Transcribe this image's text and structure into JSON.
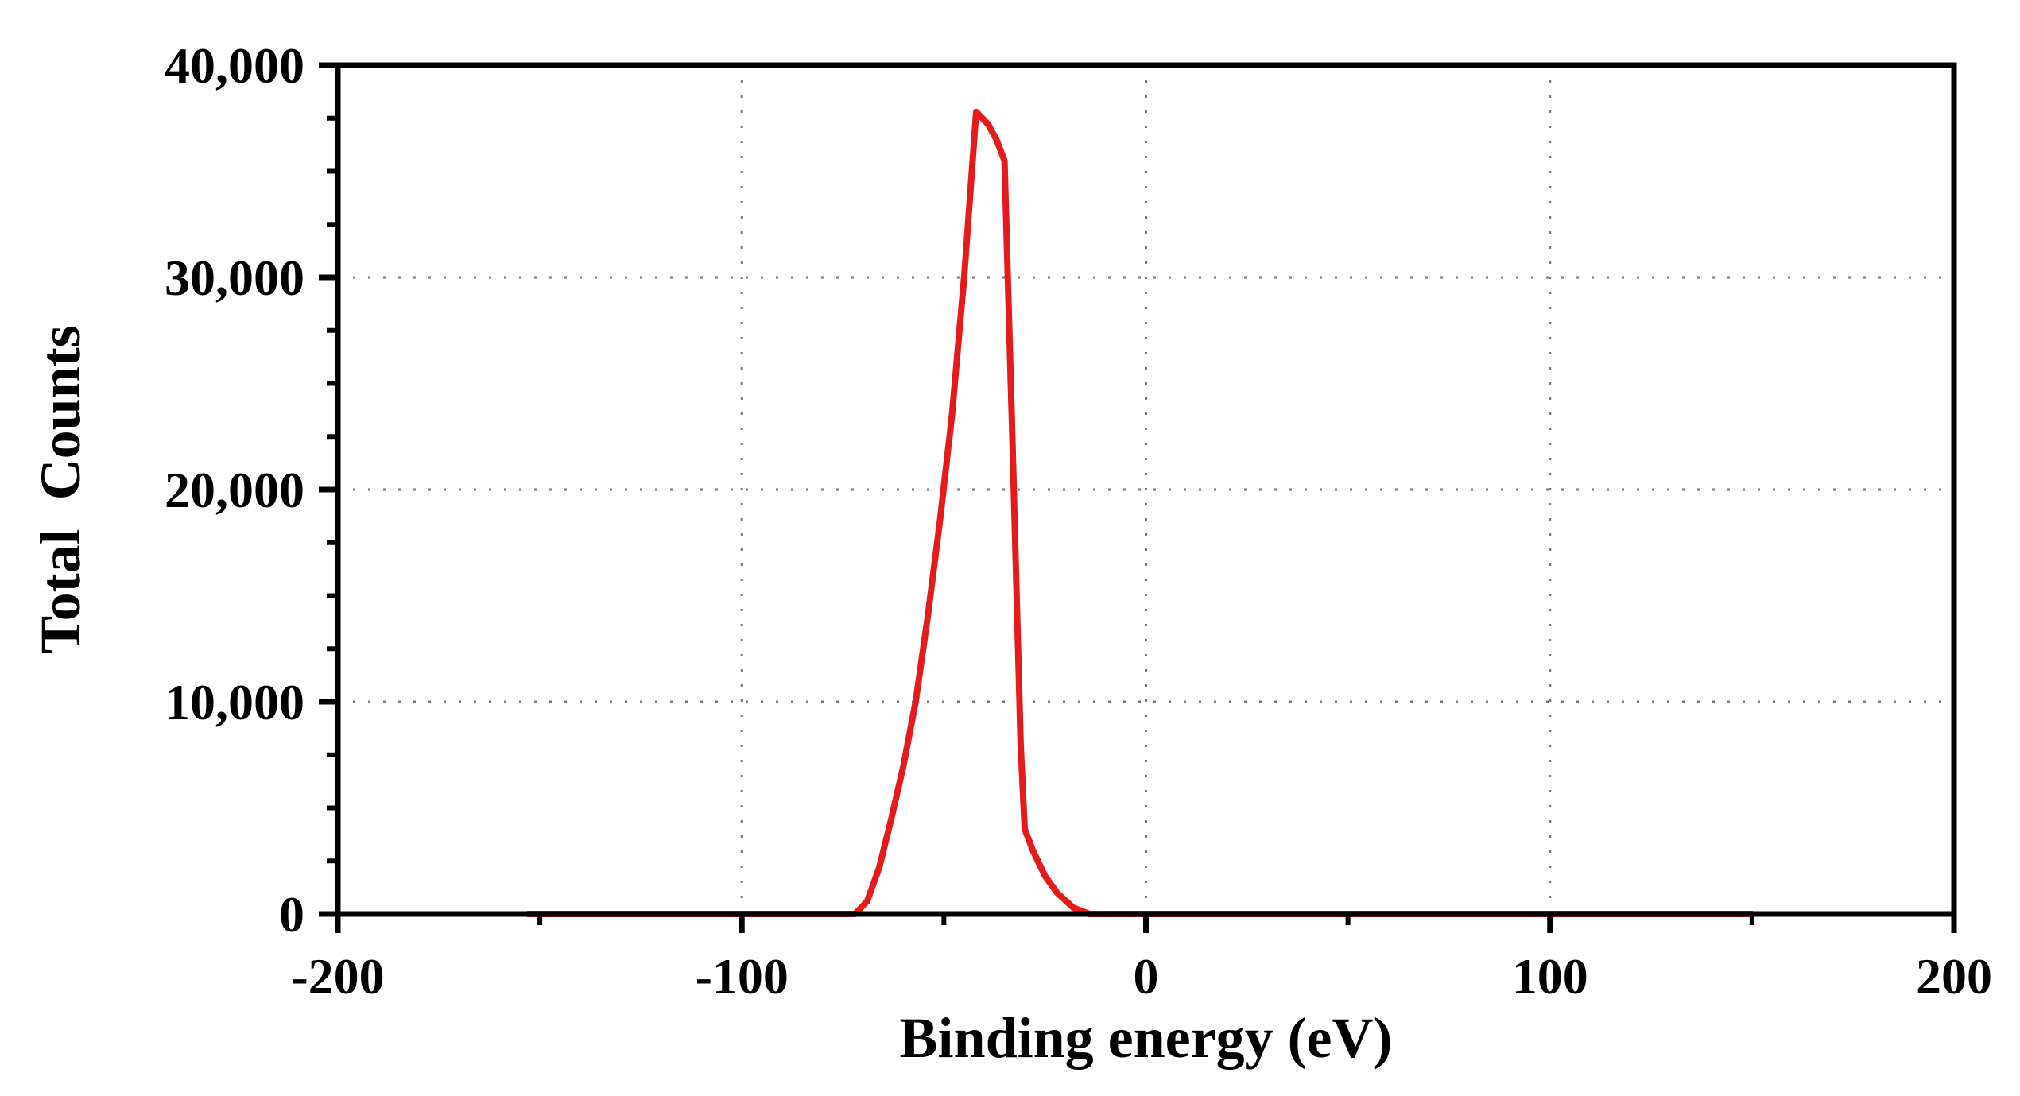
{
  "chart_data": {
    "type": "line",
    "title": "",
    "xlabel": "Binding energy (eV)",
    "ylabel": "Total  Counts",
    "xlim": [
      -200,
      200
    ],
    "ylim": [
      0,
      40000
    ],
    "x_ticks": [
      -200,
      -100,
      0,
      100,
      200
    ],
    "x_tick_labels": [
      "-200",
      "-100",
      "0",
      "100",
      "200"
    ],
    "y_ticks": [
      0,
      10000,
      20000,
      30000,
      40000
    ],
    "y_tick_labels": [
      "0",
      "10,000",
      "20,000",
      "30,000",
      "40,000"
    ],
    "grid": true,
    "legend": null,
    "series": [
      {
        "name": "Total Counts",
        "color": "#e41a1c",
        "x": [
          -153,
          -140,
          -120,
          -100,
          -85,
          -72,
          -69,
          -66,
          -63,
          -60,
          -57,
          -54,
          -51,
          -48,
          -45,
          -42,
          -39,
          -37,
          -35,
          -33,
          -31,
          -30,
          -28,
          -25,
          -22,
          -18,
          -14,
          -10,
          0,
          50,
          100,
          150
        ],
        "y": [
          0,
          0,
          0,
          0,
          0,
          0,
          600,
          2200,
          4500,
          7000,
          10000,
          14000,
          18500,
          23500,
          30000,
          37800,
          37200,
          36500,
          35500,
          22000,
          8000,
          4000,
          3000,
          1800,
          1000,
          300,
          0,
          0,
          0,
          0,
          0,
          0
        ]
      }
    ]
  }
}
